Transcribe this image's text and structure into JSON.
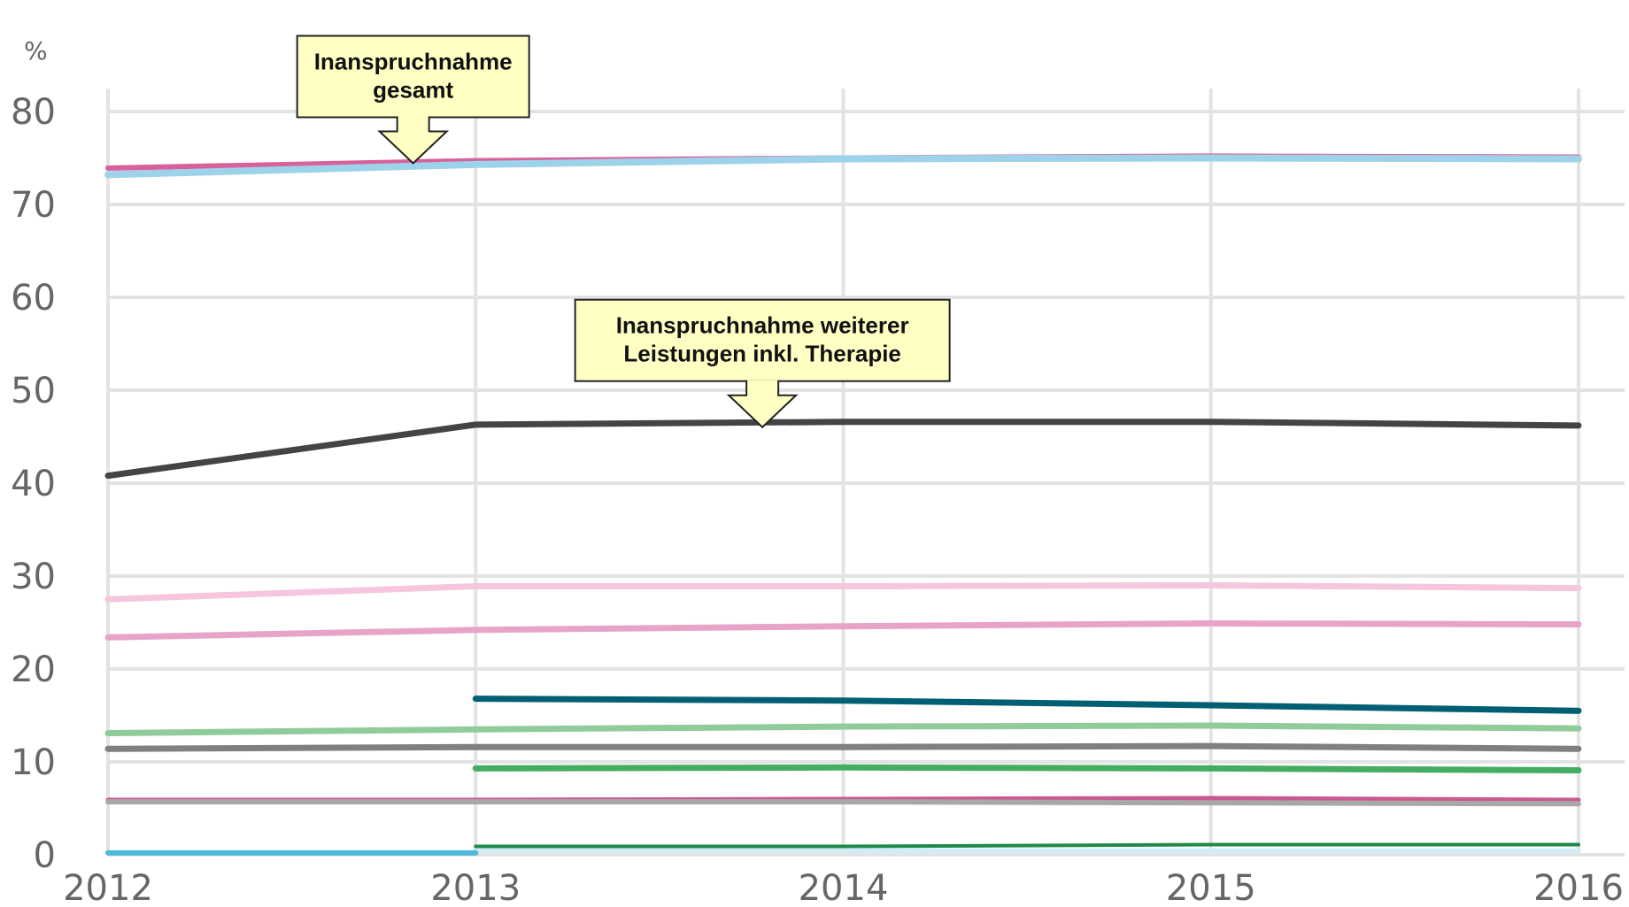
{
  "chart_data": {
    "type": "line",
    "ylabel": "%",
    "ylim": [
      0,
      80
    ],
    "xlim": [
      2012,
      2016
    ],
    "x": [
      2012,
      2013,
      2014,
      2015,
      2016
    ],
    "yticks": [
      0,
      10,
      20,
      30,
      40,
      50,
      60,
      70,
      80
    ],
    "xticks": [
      2012,
      2013,
      2014,
      2015,
      2016
    ],
    "grid": true,
    "series": [
      {
        "color": "#d9609a",
        "width": 6,
        "values": [
          73.9,
          74.7,
          75.0,
          75.2,
          75.1
        ]
      },
      {
        "color": "#9dd3ea",
        "width": 8,
        "values": [
          73.2,
          74.3,
          74.9,
          75.0,
          74.9
        ]
      },
      {
        "color": "#444444",
        "width": 7,
        "values": [
          40.8,
          46.3,
          46.6,
          46.6,
          46.2
        ]
      },
      {
        "color": "#f5c6dd",
        "width": 7,
        "values": [
          27.5,
          28.9,
          28.9,
          29.0,
          28.7
        ]
      },
      {
        "color": "#e8a4c8",
        "width": 7,
        "values": [
          23.4,
          24.2,
          24.6,
          24.9,
          24.8
        ]
      },
      {
        "color": "#005f73",
        "width": 7,
        "values": [
          null,
          16.8,
          16.6,
          16.1,
          15.5
        ]
      },
      {
        "color": "#90cc9a",
        "width": 7,
        "values": [
          13.1,
          13.5,
          13.8,
          13.9,
          13.6
        ]
      },
      {
        "color": "#808080",
        "width": 7,
        "values": [
          11.4,
          11.6,
          11.6,
          11.7,
          11.4
        ]
      },
      {
        "color": "#45ad62",
        "width": 7,
        "values": [
          null,
          9.3,
          9.4,
          9.3,
          9.1
        ]
      },
      {
        "color": "#c9598f",
        "width": 5,
        "values": [
          5.9,
          5.9,
          6.0,
          6.1,
          5.9
        ]
      },
      {
        "color": "#a8a8a8",
        "width": 6,
        "values": [
          5.7,
          5.7,
          5.7,
          5.6,
          5.5
        ]
      },
      {
        "color": "#1e8a4a",
        "width": 4,
        "values": [
          null,
          0.9,
          0.9,
          1.1,
          1.1
        ]
      },
      {
        "color": "#d2ecf5",
        "width": 6,
        "values": [
          null,
          0.4,
          0.4,
          0.4,
          0.4
        ]
      },
      {
        "color": "#4fb8dd",
        "width": 6,
        "values": [
          0.2,
          0.2,
          null,
          null,
          null
        ]
      }
    ],
    "annotations": [
      {
        "lines": [
          "Inanspruchnahme",
          "gesamt"
        ],
        "x": 2012.83,
        "y": 75.0,
        "fill": "#ffffc4"
      },
      {
        "lines": [
          "Inanspruchnahme weiterer",
          "Leistungen  inkl. Therapie"
        ],
        "x": 2013.78,
        "y": 46.6,
        "fill": "#ffffc4"
      }
    ]
  }
}
